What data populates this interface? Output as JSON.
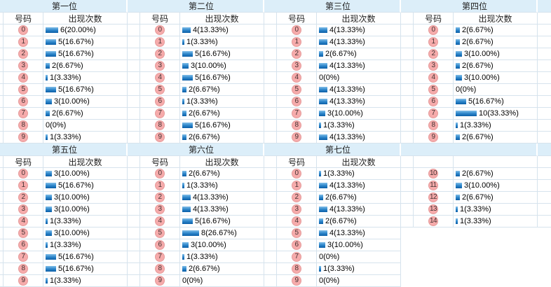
{
  "labels": {
    "number_col": "号码",
    "count_col": "出现次数"
  },
  "colors": {
    "header_band_bg": "#dceef9",
    "grid_line": "#d6e3ed",
    "badge_bg": "#f6abab",
    "badge_border": "#e59c9c",
    "badge_text": "#443333",
    "bar_gradient_top": "#83bfe9",
    "bar_gradient_mid": "#2f87cb",
    "bar_gradient_bottom": "#0a5ea8",
    "text": "#000000"
  },
  "chart_data": [
    {
      "type": "bar",
      "title": "第一位",
      "categories": [
        "0",
        "1",
        "2",
        "3",
        "4",
        "5",
        "6",
        "7",
        "8",
        "9"
      ],
      "values": [
        6,
        5,
        5,
        2,
        1,
        5,
        3,
        2,
        0,
        1
      ],
      "percents": [
        "20.00%",
        "16.67%",
        "16.67%",
        "6.67%",
        "3.33%",
        "16.67%",
        "10.00%",
        "6.67%",
        "0%",
        "3.33%"
      ]
    },
    {
      "type": "bar",
      "title": "第二位",
      "categories": [
        "0",
        "1",
        "2",
        "3",
        "4",
        "5",
        "6",
        "7",
        "8",
        "9"
      ],
      "values": [
        4,
        1,
        5,
        3,
        5,
        2,
        1,
        2,
        5,
        2
      ],
      "percents": [
        "13.33%",
        "3.33%",
        "16.67%",
        "10.00%",
        "16.67%",
        "6.67%",
        "3.33%",
        "6.67%",
        "16.67%",
        "6.67%"
      ]
    },
    {
      "type": "bar",
      "title": "第三位",
      "categories": [
        "0",
        "1",
        "2",
        "3",
        "4",
        "5",
        "6",
        "7",
        "8",
        "9"
      ],
      "values": [
        4,
        4,
        2,
        4,
        0,
        4,
        4,
        3,
        1,
        4
      ],
      "percents": [
        "13.33%",
        "13.33%",
        "6.67%",
        "13.33%",
        "0%",
        "13.33%",
        "13.33%",
        "10.00%",
        "3.33%",
        "13.33%"
      ]
    },
    {
      "type": "bar",
      "title": "第四位",
      "categories": [
        "0",
        "1",
        "2",
        "3",
        "4",
        "5",
        "6",
        "7",
        "8",
        "9"
      ],
      "values": [
        2,
        2,
        3,
        2,
        3,
        0,
        5,
        10,
        1,
        2
      ],
      "percents": [
        "6.67%",
        "6.67%",
        "10.00%",
        "6.67%",
        "10.00%",
        "0%",
        "16.67%",
        "33.33%",
        "3.33%",
        "6.67%"
      ]
    },
    {
      "type": "bar",
      "title": "第五位",
      "categories": [
        "0",
        "1",
        "2",
        "3",
        "4",
        "5",
        "6",
        "7",
        "8",
        "9"
      ],
      "values": [
        3,
        5,
        3,
        3,
        1,
        3,
        1,
        5,
        5,
        1
      ],
      "percents": [
        "10.00%",
        "16.67%",
        "10.00%",
        "10.00%",
        "3.33%",
        "10.00%",
        "3.33%",
        "16.67%",
        "16.67%",
        "3.33%"
      ]
    },
    {
      "type": "bar",
      "title": "第六位",
      "categories": [
        "0",
        "1",
        "2",
        "3",
        "4",
        "5",
        "6",
        "7",
        "8",
        "9"
      ],
      "values": [
        2,
        1,
        4,
        4,
        5,
        8,
        3,
        1,
        2,
        0
      ],
      "percents": [
        "6.67%",
        "3.33%",
        "13.33%",
        "13.33%",
        "16.67%",
        "26.67%",
        "10.00%",
        "3.33%",
        "6.67%",
        "0%"
      ]
    },
    {
      "type": "bar",
      "title": "第七位",
      "categories": [
        "0",
        "1",
        "2",
        "3",
        "4",
        "5",
        "6",
        "7",
        "8",
        "9"
      ],
      "values": [
        1,
        4,
        2,
        4,
        2,
        4,
        3,
        0,
        1,
        0
      ],
      "percents": [
        "3.33%",
        "13.33%",
        "6.67%",
        "13.33%",
        "6.67%",
        "13.33%",
        "10.00%",
        "0%",
        "3.33%",
        "0%"
      ]
    },
    {
      "type": "bar",
      "title": "",
      "categories": [
        "10",
        "11",
        "12",
        "13",
        "14"
      ],
      "values": [
        2,
        3,
        2,
        1,
        1
      ],
      "percents": [
        "6.67%",
        "10.00%",
        "6.67%",
        "3.33%",
        "3.33%"
      ]
    }
  ],
  "tables": [
    {
      "title": "第一位",
      "col_headers": [
        "号码",
        "出现次数"
      ],
      "rows": [
        {
          "number": "0",
          "count": 6,
          "percent": "20.00%"
        },
        {
          "number": "1",
          "count": 5,
          "percent": "16.67%"
        },
        {
          "number": "2",
          "count": 5,
          "percent": "16.67%"
        },
        {
          "number": "3",
          "count": 2,
          "percent": "6.67%"
        },
        {
          "number": "4",
          "count": 1,
          "percent": "3.33%"
        },
        {
          "number": "5",
          "count": 5,
          "percent": "16.67%"
        },
        {
          "number": "6",
          "count": 3,
          "percent": "10.00%"
        },
        {
          "number": "7",
          "count": 2,
          "percent": "6.67%"
        },
        {
          "number": "8",
          "count": 0,
          "percent": "0%"
        },
        {
          "number": "9",
          "count": 1,
          "percent": "3.33%"
        }
      ]
    },
    {
      "title": "第二位",
      "col_headers": [
        "号码",
        "出现次数"
      ],
      "rows": [
        {
          "number": "0",
          "count": 4,
          "percent": "13.33%"
        },
        {
          "number": "1",
          "count": 1,
          "percent": "3.33%"
        },
        {
          "number": "2",
          "count": 5,
          "percent": "16.67%"
        },
        {
          "number": "3",
          "count": 3,
          "percent": "10.00%"
        },
        {
          "number": "4",
          "count": 5,
          "percent": "16.67%"
        },
        {
          "number": "5",
          "count": 2,
          "percent": "6.67%"
        },
        {
          "number": "6",
          "count": 1,
          "percent": "3.33%"
        },
        {
          "number": "7",
          "count": 2,
          "percent": "6.67%"
        },
        {
          "number": "8",
          "count": 5,
          "percent": "16.67%"
        },
        {
          "number": "9",
          "count": 2,
          "percent": "6.67%"
        }
      ]
    },
    {
      "title": "第三位",
      "col_headers": [
        "号码",
        "出现次数"
      ],
      "rows": [
        {
          "number": "0",
          "count": 4,
          "percent": "13.33%"
        },
        {
          "number": "1",
          "count": 4,
          "percent": "13.33%"
        },
        {
          "number": "2",
          "count": 2,
          "percent": "6.67%"
        },
        {
          "number": "3",
          "count": 4,
          "percent": "13.33%"
        },
        {
          "number": "4",
          "count": 0,
          "percent": "0%"
        },
        {
          "number": "5",
          "count": 4,
          "percent": "13.33%"
        },
        {
          "number": "6",
          "count": 4,
          "percent": "13.33%"
        },
        {
          "number": "7",
          "count": 3,
          "percent": "10.00%"
        },
        {
          "number": "8",
          "count": 1,
          "percent": "3.33%"
        },
        {
          "number": "9",
          "count": 4,
          "percent": "13.33%"
        }
      ]
    },
    {
      "title": "第四位",
      "col_headers": [
        "号码",
        "出现次数"
      ],
      "rows": [
        {
          "number": "0",
          "count": 2,
          "percent": "6.67%"
        },
        {
          "number": "1",
          "count": 2,
          "percent": "6.67%"
        },
        {
          "number": "2",
          "count": 3,
          "percent": "10.00%"
        },
        {
          "number": "3",
          "count": 2,
          "percent": "6.67%"
        },
        {
          "number": "4",
          "count": 3,
          "percent": "10.00%"
        },
        {
          "number": "5",
          "count": 0,
          "percent": "0%"
        },
        {
          "number": "6",
          "count": 5,
          "percent": "16.67%"
        },
        {
          "number": "7",
          "count": 10,
          "percent": "33.33%"
        },
        {
          "number": "8",
          "count": 1,
          "percent": "3.33%"
        },
        {
          "number": "9",
          "count": 2,
          "percent": "6.67%"
        }
      ]
    },
    {
      "title": "第五位",
      "col_headers": [
        "号码",
        "出现次数"
      ],
      "rows": [
        {
          "number": "0",
          "count": 3,
          "percent": "10.00%"
        },
        {
          "number": "1",
          "count": 5,
          "percent": "16.67%"
        },
        {
          "number": "2",
          "count": 3,
          "percent": "10.00%"
        },
        {
          "number": "3",
          "count": 3,
          "percent": "10.00%"
        },
        {
          "number": "4",
          "count": 1,
          "percent": "3.33%"
        },
        {
          "number": "5",
          "count": 3,
          "percent": "10.00%"
        },
        {
          "number": "6",
          "count": 1,
          "percent": "3.33%"
        },
        {
          "number": "7",
          "count": 5,
          "percent": "16.67%"
        },
        {
          "number": "8",
          "count": 5,
          "percent": "16.67%"
        },
        {
          "number": "9",
          "count": 1,
          "percent": "3.33%"
        }
      ]
    },
    {
      "title": "第六位",
      "col_headers": [
        "号码",
        "出现次数"
      ],
      "rows": [
        {
          "number": "0",
          "count": 2,
          "percent": "6.67%"
        },
        {
          "number": "1",
          "count": 1,
          "percent": "3.33%"
        },
        {
          "number": "2",
          "count": 4,
          "percent": "13.33%"
        },
        {
          "number": "3",
          "count": 4,
          "percent": "13.33%"
        },
        {
          "number": "4",
          "count": 5,
          "percent": "16.67%"
        },
        {
          "number": "5",
          "count": 8,
          "percent": "26.67%"
        },
        {
          "number": "6",
          "count": 3,
          "percent": "10.00%"
        },
        {
          "number": "7",
          "count": 1,
          "percent": "3.33%"
        },
        {
          "number": "8",
          "count": 2,
          "percent": "6.67%"
        },
        {
          "number": "9",
          "count": 0,
          "percent": "0%"
        }
      ]
    },
    {
      "title": "第七位",
      "col_headers": [
        "号码",
        "出现次数"
      ],
      "rows": [
        {
          "number": "0",
          "count": 1,
          "percent": "3.33%"
        },
        {
          "number": "1",
          "count": 4,
          "percent": "13.33%"
        },
        {
          "number": "2",
          "count": 2,
          "percent": "6.67%"
        },
        {
          "number": "3",
          "count": 4,
          "percent": "13.33%"
        },
        {
          "number": "4",
          "count": 2,
          "percent": "6.67%"
        },
        {
          "number": "5",
          "count": 4,
          "percent": "13.33%"
        },
        {
          "number": "6",
          "count": 3,
          "percent": "10.00%"
        },
        {
          "number": "7",
          "count": 0,
          "percent": "0%"
        },
        {
          "number": "8",
          "count": 1,
          "percent": "3.33%"
        },
        {
          "number": "9",
          "count": 0,
          "percent": "0%"
        }
      ]
    },
    {
      "title": "",
      "col_headers": [
        "",
        ""
      ],
      "rows": [
        {
          "number": "10",
          "count": 2,
          "percent": "6.67%"
        },
        {
          "number": "11",
          "count": 3,
          "percent": "10.00%"
        },
        {
          "number": "12",
          "count": 2,
          "percent": "6.67%"
        },
        {
          "number": "13",
          "count": 1,
          "percent": "3.33%"
        },
        {
          "number": "14",
          "count": 1,
          "percent": "3.33%"
        }
      ]
    }
  ]
}
